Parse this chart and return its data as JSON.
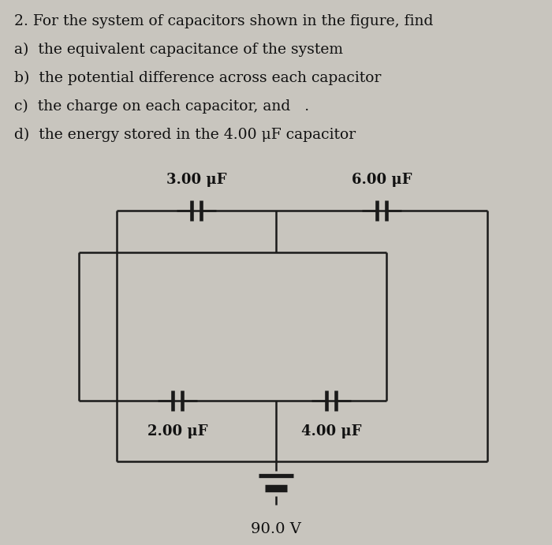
{
  "bg_color": "#c8c5be",
  "text_color": "#111111",
  "title_lines": [
    "2. For the system of capacitors shown in the figure, find",
    "a)  the equivalent capacitance of the system",
    "b)  the potential difference across each capacitor",
    "c)  the charge on each capacitor, and   .",
    "d)  the energy stored in the 4.00 μF capacitor"
  ],
  "cap_labels": {
    "C1": "3.00 μF",
    "C2": "6.00 μF",
    "C3": "2.00 μF",
    "C4": "4.00 μF"
  },
  "voltage_label": "90.0 V",
  "line_color": "#1a1a1a",
  "line_width": 1.8,
  "font_size_title": 13.5,
  "font_size_label": 13
}
